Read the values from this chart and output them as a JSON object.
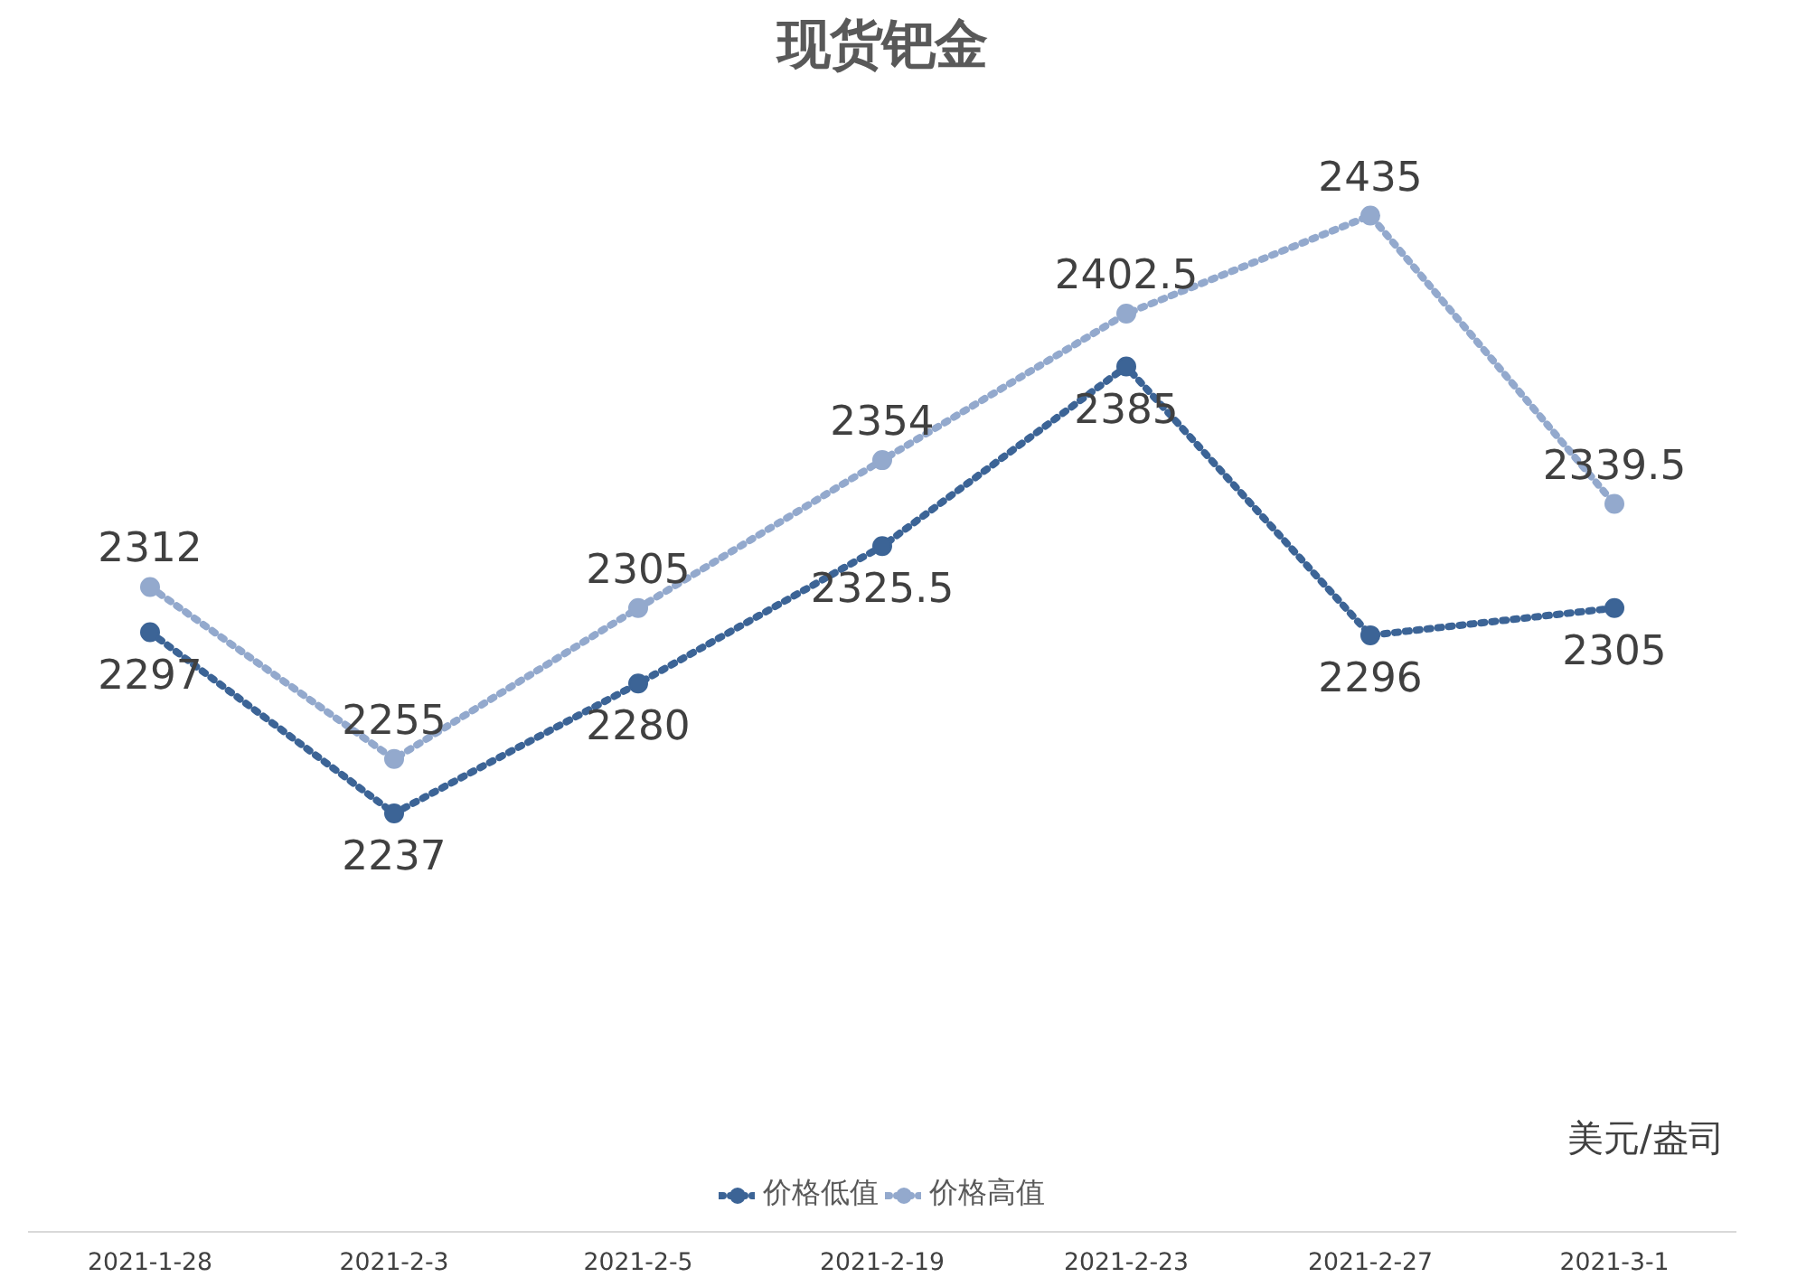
{
  "chart_data": {
    "type": "line",
    "title": "现货钯金",
    "categories": [
      "2021-1-28",
      "2021-2-3",
      "2021-2-5",
      "2021-2-19",
      "2021-2-23",
      "2021-2-27",
      "2021-3-1"
    ],
    "series": [
      {
        "name": "价格低值",
        "color": "#3c6496",
        "values": [
          2297,
          2237,
          2280,
          2325.5,
          2385,
          2296,
          2305
        ]
      },
      {
        "name": "价格高值",
        "color": "#93a9cd",
        "values": [
          2312,
          2255,
          2305,
          2354,
          2402.5,
          2435,
          2339.5
        ]
      }
    ],
    "tick_labels": "x",
    "data_labels": true,
    "legend": "bottom",
    "marker": "circle",
    "line_style": "dotted",
    "grid": false,
    "annotations": [
      "美元/盎司"
    ]
  }
}
